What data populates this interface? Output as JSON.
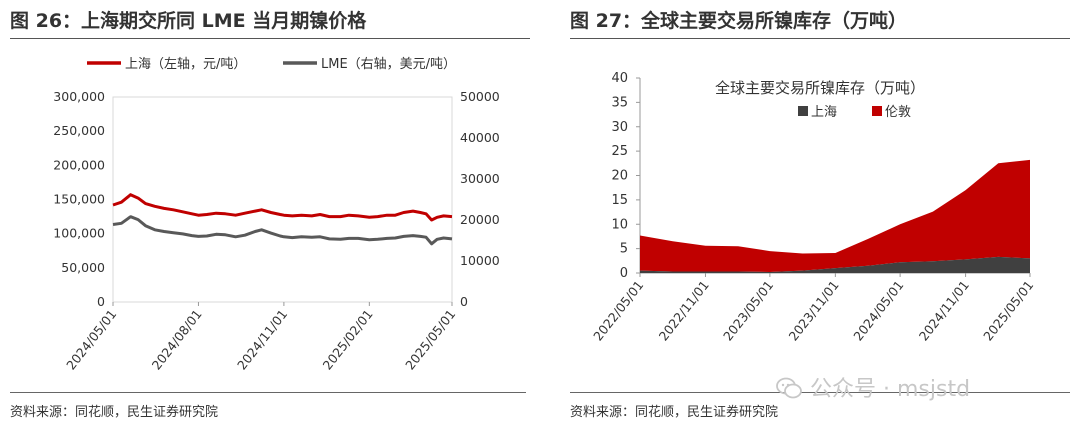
{
  "left": {
    "figure_title": "图 26：上海期交所同 LME 当月期镍价格",
    "source": "资料来源：同花顺，民生证券研究院",
    "chart_data": {
      "type": "line",
      "title": "",
      "legend_position": "top",
      "grid": false,
      "x_labels": [
        "2024/05/01",
        "2024/08/01",
        "2024/11/01",
        "2025/02/01",
        "2025/05/01"
      ],
      "y_left": {
        "range": [
          0,
          300000
        ],
        "ticks": [
          "300,000",
          "250,000",
          "200,000",
          "150,000",
          "100,000",
          "50,000",
          "0"
        ]
      },
      "y_right": {
        "range": [
          0,
          50000
        ],
        "ticks": [
          "50000",
          "40000",
          "30000",
          "20000",
          "10000",
          "0"
        ]
      },
      "series": [
        {
          "name": "上海（左轴，元/吨）",
          "axis": "left",
          "color": "#c00000",
          "points": [
            [
              "2024/05/01",
              142000
            ],
            [
              "2024/05/10",
              146000
            ],
            [
              "2024/05/20",
              157000
            ],
            [
              "2024/05/28",
              152000
            ],
            [
              "2024/06/05",
              144000
            ],
            [
              "2024/06/15",
              140000
            ],
            [
              "2024/06/25",
              137000
            ],
            [
              "2024/07/05",
              135000
            ],
            [
              "2024/07/15",
              132000
            ],
            [
              "2024/07/25",
              129000
            ],
            [
              "2024/08/01",
              127000
            ],
            [
              "2024/08/10",
              128000
            ],
            [
              "2024/08/20",
              130000
            ],
            [
              "2024/08/30",
              129000
            ],
            [
              "2024/09/10",
              127000
            ],
            [
              "2024/09/20",
              130000
            ],
            [
              "2024/10/01",
              133000
            ],
            [
              "2024/10/08",
              135000
            ],
            [
              "2024/10/18",
              131000
            ],
            [
              "2024/10/28",
              128000
            ],
            [
              "2024/11/01",
              127000
            ],
            [
              "2024/11/10",
              126000
            ],
            [
              "2024/11/20",
              127000
            ],
            [
              "2024/12/01",
              126000
            ],
            [
              "2024/12/10",
              128000
            ],
            [
              "2024/12/20",
              125000
            ],
            [
              "2025/01/01",
              125000
            ],
            [
              "2025/01/10",
              127000
            ],
            [
              "2025/01/20",
              126000
            ],
            [
              "2025/02/01",
              124000
            ],
            [
              "2025/02/10",
              125000
            ],
            [
              "2025/02/20",
              127000
            ],
            [
              "2025/03/01",
              127000
            ],
            [
              "2025/03/10",
              131000
            ],
            [
              "2025/03/20",
              133000
            ],
            [
              "2025/03/28",
              131000
            ],
            [
              "2025/04/03",
              129000
            ],
            [
              "2025/04/09",
              120000
            ],
            [
              "2025/04/15",
              124000
            ],
            [
              "2025/04/22",
              126000
            ],
            [
              "2025/05/01",
              125000
            ]
          ]
        },
        {
          "name": "LME（右轴，美元/吨）",
          "axis": "right",
          "color": "#595959",
          "points": [
            [
              "2024/05/01",
              18900
            ],
            [
              "2024/05/10",
              19200
            ],
            [
              "2024/05/20",
              20800
            ],
            [
              "2024/05/28",
              20100
            ],
            [
              "2024/06/05",
              18600
            ],
            [
              "2024/06/15",
              17600
            ],
            [
              "2024/06/25",
              17200
            ],
            [
              "2024/07/05",
              16900
            ],
            [
              "2024/07/15",
              16600
            ],
            [
              "2024/07/25",
              16200
            ],
            [
              "2024/08/01",
              16000
            ],
            [
              "2024/08/10",
              16100
            ],
            [
              "2024/08/20",
              16500
            ],
            [
              "2024/08/30",
              16400
            ],
            [
              "2024/09/10",
              15900
            ],
            [
              "2024/09/20",
              16300
            ],
            [
              "2024/10/01",
              17200
            ],
            [
              "2024/10/08",
              17600
            ],
            [
              "2024/10/18",
              16800
            ],
            [
              "2024/10/28",
              16100
            ],
            [
              "2024/11/01",
              15900
            ],
            [
              "2024/11/10",
              15700
            ],
            [
              "2024/11/20",
              15900
            ],
            [
              "2024/12/01",
              15800
            ],
            [
              "2024/12/10",
              15900
            ],
            [
              "2024/12/20",
              15400
            ],
            [
              "2025/01/01",
              15300
            ],
            [
              "2025/01/10",
              15500
            ],
            [
              "2025/01/20",
              15500
            ],
            [
              "2025/02/01",
              15200
            ],
            [
              "2025/02/10",
              15300
            ],
            [
              "2025/02/20",
              15500
            ],
            [
              "2025/03/01",
              15600
            ],
            [
              "2025/03/10",
              16000
            ],
            [
              "2025/03/20",
              16200
            ],
            [
              "2025/03/28",
              16000
            ],
            [
              "2025/04/03",
              15800
            ],
            [
              "2025/04/09",
              14200
            ],
            [
              "2025/04/15",
              15300
            ],
            [
              "2025/04/22",
              15600
            ],
            [
              "2025/05/01",
              15400
            ]
          ]
        }
      ]
    }
  },
  "right": {
    "figure_title": "图 27：全球主要交易所镍库存（万吨）",
    "source": "资料来源：同花顺，民生证券研究院",
    "chart_data": {
      "type": "area",
      "stacked": true,
      "title": "全球主要交易所镍库存（万吨）",
      "legend_position": "top-left",
      "grid": false,
      "x_labels": [
        "2022/05/01",
        "2022/11/01",
        "2023/05/01",
        "2023/11/01",
        "2024/05/01",
        "2024/11/01",
        "2025/05/01"
      ],
      "y_range": [
        0,
        40
      ],
      "y_ticks": [
        "40",
        "35",
        "30",
        "25",
        "20",
        "15",
        "10",
        "5",
        "0"
      ],
      "x_dates": [
        "2022/05/01",
        "2022/08/01",
        "2022/11/01",
        "2023/02/01",
        "2023/05/01",
        "2023/08/01",
        "2023/11/01",
        "2024/02/01",
        "2024/05/01",
        "2024/08/01",
        "2024/11/01",
        "2025/02/01",
        "2025/05/01"
      ],
      "series": [
        {
          "name": "上海",
          "color": "#404040",
          "values": [
            0.5,
            0.3,
            0.3,
            0.3,
            0.2,
            0.5,
            1.0,
            1.5,
            2.2,
            2.4,
            2.8,
            3.3,
            3.0
          ]
        },
        {
          "name": "伦敦",
          "color": "#c00000",
          "values": [
            7.2,
            6.2,
            5.3,
            5.2,
            4.3,
            3.5,
            3.1,
            5.5,
            7.8,
            10.2,
            14.2,
            19.2,
            20.2
          ]
        }
      ]
    }
  },
  "watermark": {
    "icon": "wechat-icon",
    "text": "公众号 · msjstd"
  }
}
